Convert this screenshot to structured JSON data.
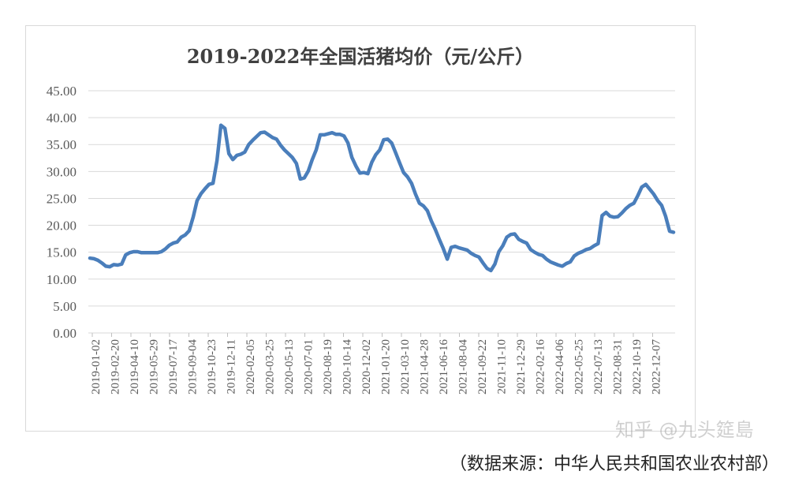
{
  "chart_data": {
    "type": "line",
    "title": "2019-2022年全国活猪均价（元/公斤）",
    "xlabel": "",
    "ylabel": "",
    "ylim": [
      0,
      45
    ],
    "yticks": [
      "0.00",
      "5.00",
      "10.00",
      "15.00",
      "20.00",
      "25.00",
      "30.00",
      "35.00",
      "40.00",
      "45.00"
    ],
    "grid": true,
    "legend": "none",
    "line_color": "#4a7ebb",
    "xtick_labels": [
      "2019-01-02",
      "2019-02-20",
      "2019-04-10",
      "2019-05-29",
      "2019-07-17",
      "2019-09-04",
      "2019-10-23",
      "2019-12-11",
      "2020-02-05",
      "2020-03-25",
      "2020-05-13",
      "2020-07-01",
      "2020-08-19",
      "2020-10-14",
      "2020-12-02",
      "2021-01-20",
      "2021-03-10",
      "2021-04-28",
      "2021-06-16",
      "2021-08-04",
      "2021-09-22",
      "2021-11-10",
      "2021-12-29",
      "2022-02-16",
      "2022-04-06",
      "2022-05-25",
      "2022-07-13",
      "2022-08-31",
      "2022-10-19",
      "2022-12-07"
    ],
    "series": [
      {
        "values": [
          13.9,
          13.8,
          13.5,
          13.0,
          12.4,
          12.3,
          12.7,
          12.6,
          12.8,
          14.5,
          14.9,
          15.1,
          15.1,
          14.9,
          14.9,
          14.9,
          14.9,
          14.9,
          15.1,
          15.6,
          16.3,
          16.7,
          16.9,
          17.8,
          18.2,
          19.0,
          21.5,
          24.6,
          25.9,
          26.8,
          27.6,
          27.8,
          32.0,
          38.6,
          38.0,
          33.3,
          32.2,
          33.0,
          33.2,
          33.6,
          35.0,
          35.8,
          36.5,
          37.2,
          37.3,
          36.8,
          36.3,
          36.0,
          34.9,
          34.0,
          33.3,
          32.6,
          31.5,
          28.6,
          28.8,
          30.1,
          32.2,
          34.0,
          36.8,
          36.8,
          37.0,
          37.2,
          36.9,
          36.9,
          36.6,
          35.3,
          32.6,
          31.0,
          29.7,
          29.8,
          29.6,
          31.7,
          33.1,
          34.0,
          35.9,
          36.0,
          35.3,
          33.5,
          31.6,
          29.8,
          29.0,
          27.8,
          25.8,
          24.1,
          23.6,
          22.7,
          20.8,
          19.2,
          17.4,
          15.7,
          13.7,
          15.9,
          16.1,
          15.8,
          15.6,
          15.4,
          14.8,
          14.4,
          14.1,
          13.0,
          12.0,
          11.6,
          12.8,
          15.1,
          16.2,
          17.8,
          18.3,
          18.4,
          17.4,
          17.0,
          16.7,
          15.5,
          15.0,
          14.6,
          14.4,
          13.7,
          13.2,
          12.9,
          12.6,
          12.4,
          12.9,
          13.2,
          14.3,
          14.8,
          15.1,
          15.5,
          15.7,
          16.2,
          16.6,
          21.8,
          22.4,
          21.7,
          21.5,
          21.6,
          22.3,
          23.1,
          23.7,
          24.1,
          25.5,
          27.1,
          27.6,
          26.7,
          25.8,
          24.6,
          23.7,
          21.7,
          18.9,
          18.7
        ]
      }
    ]
  },
  "source_note": "（数据来源：中华人民共和国农业农村部）",
  "watermark": "知乎 @九头筵島"
}
